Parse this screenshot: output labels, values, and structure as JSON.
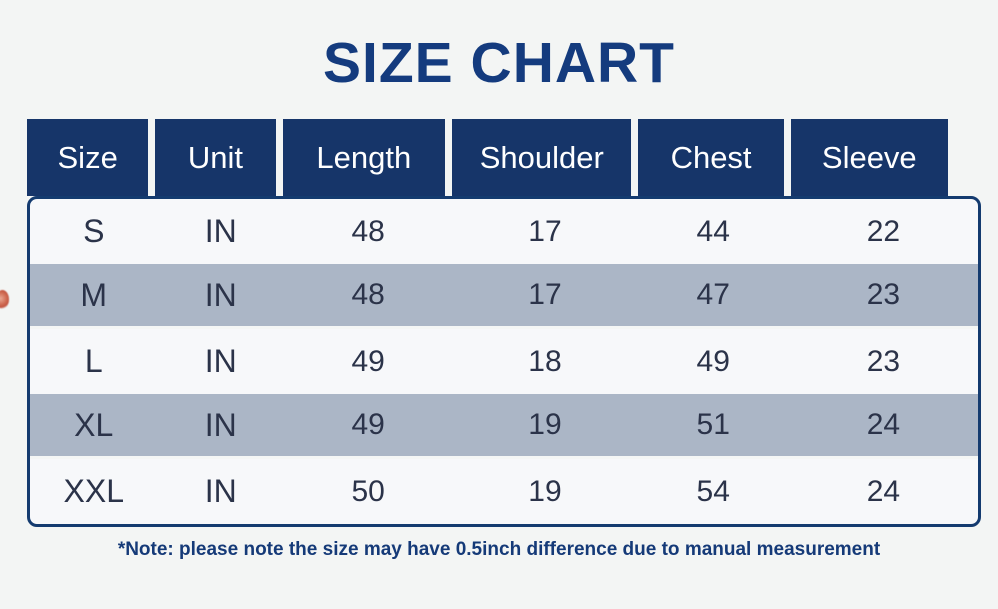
{
  "title": "SIZE CHART",
  "note": "*Note: please note the size may have 0.5inch difference due to manual measurement",
  "chart_data": {
    "type": "table",
    "title": "SIZE CHART",
    "columns": [
      "Size",
      "Unit",
      "Length",
      "Shoulder",
      "Chest",
      "Sleeve"
    ],
    "rows": [
      [
        "S",
        "IN",
        "48",
        "17",
        "44",
        "22"
      ],
      [
        "M",
        "IN",
        "48",
        "17",
        "47",
        "23"
      ],
      [
        "L",
        "IN",
        "49",
        "18",
        "49",
        "23"
      ],
      [
        "XL",
        "IN",
        "49",
        "19",
        "51",
        "24"
      ],
      [
        "XXL",
        "IN",
        "50",
        "19",
        "54",
        "24"
      ]
    ],
    "note": "*Note: please note the size may have 0.5inch difference due to manual measurement",
    "layout": {
      "striped_rows": [
        1,
        3
      ],
      "unit": "inches"
    }
  },
  "colors": {
    "title_navy": "#143b7e",
    "header_navy": "#163569",
    "table_border_navy": "#143b6f",
    "stripe_blue_gray": "#abb6c6",
    "row_light": "#f7f8fa",
    "page_background": "#f3f5f4",
    "body_text": "#2b3349",
    "note_navy": "#153a78",
    "edge_artifact_red": "#cf6a52"
  }
}
